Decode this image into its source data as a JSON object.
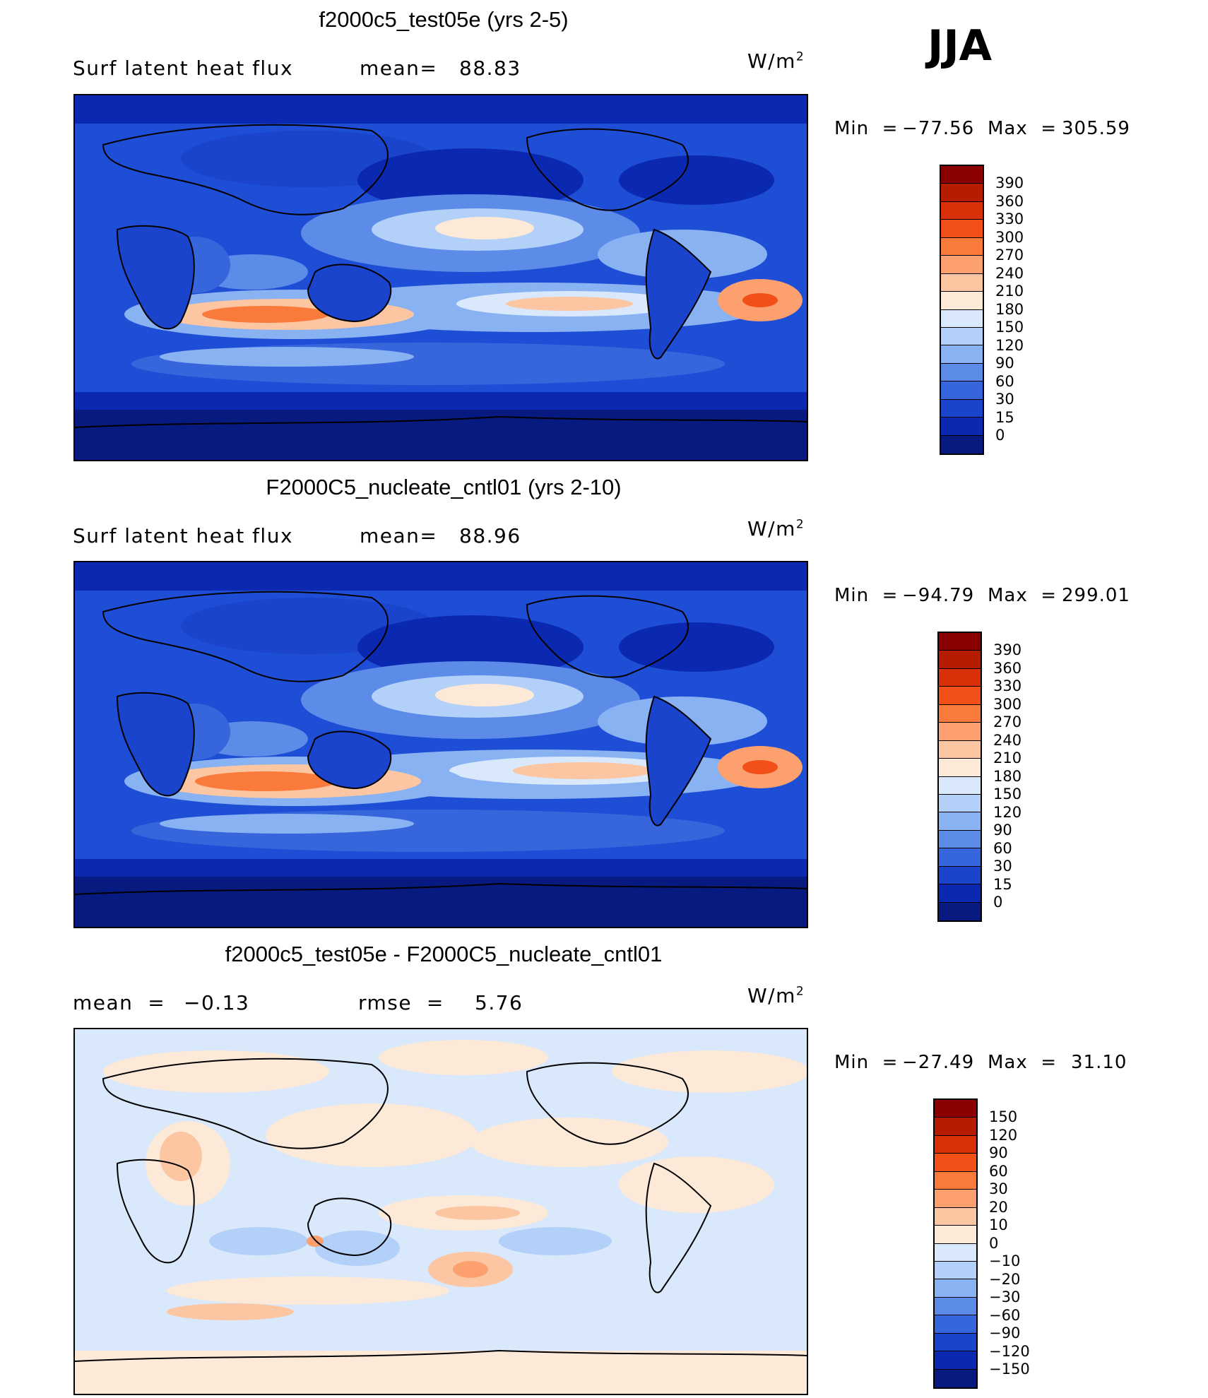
{
  "season": "JJA",
  "panels": [
    {
      "title": "f2000c5_test05e (yrs 2-5)",
      "left_label": "Surf latent heat flux",
      "stat1_label": "mean=",
      "stat1_value": "88.83",
      "units": "W/m",
      "units_exp": "2",
      "min_label": "Min  =",
      "min_value": "−77.56",
      "max_label": "Max  =",
      "max_value": "305.59",
      "colorbar": {
        "labels": [
          "390",
          "360",
          "330",
          "300",
          "270",
          "240",
          "210",
          "180",
          "150",
          "120",
          "90",
          "60",
          "30",
          "15",
          "0"
        ],
        "colors": [
          "#8b0000",
          "#b61c00",
          "#d9300a",
          "#f25018",
          "#fa7a3c",
          "#fca070",
          "#fdc6a2",
          "#fde9d8",
          "#d9e8fa",
          "#b2d0f8",
          "#88b2f2",
          "#5c8ce8",
          "#3766dc",
          "#1a44cc",
          "#0b28b0",
          "#061a80"
        ]
      }
    },
    {
      "title": "F2000C5_nucleate_cntl01 (yrs 2-10)",
      "left_label": "Surf latent heat flux",
      "stat1_label": "mean=",
      "stat1_value": "88.96",
      "units": "W/m",
      "units_exp": "2",
      "min_label": "Min  =",
      "min_value": "−94.79",
      "max_label": "Max  =",
      "max_value": "299.01",
      "colorbar": {
        "labels": [
          "390",
          "360",
          "330",
          "300",
          "270",
          "240",
          "210",
          "180",
          "150",
          "120",
          "90",
          "60",
          "30",
          "15",
          "0"
        ],
        "colors": [
          "#8b0000",
          "#b61c00",
          "#d9300a",
          "#f25018",
          "#fa7a3c",
          "#fca070",
          "#fdc6a2",
          "#fde9d8",
          "#d9e8fa",
          "#b2d0f8",
          "#88b2f2",
          "#5c8ce8",
          "#3766dc",
          "#1a44cc",
          "#0b28b0",
          "#061a80"
        ]
      }
    },
    {
      "title": "f2000c5_test05e - F2000C5_nucleate_cntl01",
      "left_label": "mean  =",
      "left_value": "−0.13",
      "stat1_label": "rmse  =",
      "stat1_value": "5.76",
      "units": "W/m",
      "units_exp": "2",
      "min_label": "Min  =",
      "min_value": "−27.49",
      "max_label": "Max  =",
      "max_value": "31.10",
      "colorbar": {
        "labels": [
          "150",
          "120",
          "90",
          "60",
          "30",
          "20",
          "10",
          "0",
          "−10",
          "−20",
          "−30",
          "−60",
          "−90",
          "−120",
          "−150"
        ],
        "colors": [
          "#8b0000",
          "#b61c00",
          "#d9300a",
          "#f25018",
          "#fa7a3c",
          "#fca070",
          "#fdc6a2",
          "#fde9d8",
          "#d9e8fa",
          "#b2d0f8",
          "#88b2f2",
          "#5c8ce8",
          "#3766dc",
          "#1a44cc",
          "#0b28b0",
          "#061a80"
        ]
      }
    }
  ]
}
